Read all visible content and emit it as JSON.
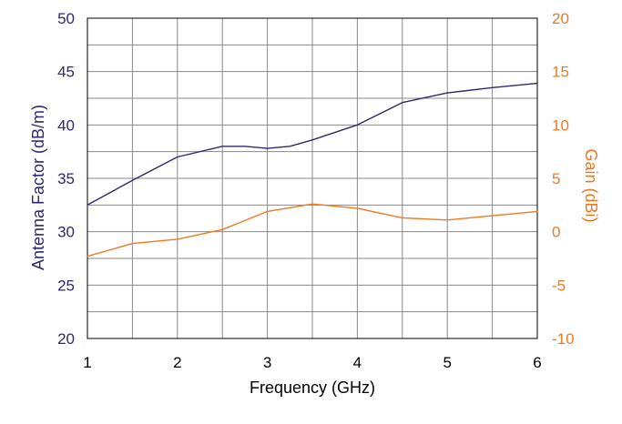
{
  "chart_data": {
    "type": "line",
    "xlabel": "Frequency (GHz)",
    "ylabel_left": "Antenna Factor (dB/m)",
    "ylabel_right": "Gain (dBi)",
    "xlim": [
      1,
      6
    ],
    "ylim_left": [
      20,
      50
    ],
    "ylim_right": [
      -10,
      20
    ],
    "x_ticks": [
      "1",
      "2",
      "3",
      "4",
      "5",
      "6"
    ],
    "y_left_ticks": [
      "20",
      "25",
      "30",
      "35",
      "40",
      "45",
      "50"
    ],
    "y_right_ticks": [
      "-10",
      "-5",
      "0",
      "5",
      "10",
      "15",
      "20"
    ],
    "grid": true,
    "series": [
      {
        "axis": "left",
        "color": "#2e2a6e",
        "x": [
          1,
          1.5,
          2,
          2.5,
          2.75,
          3,
          3.25,
          3.5,
          4,
          4.5,
          5,
          5.5,
          6
        ],
        "values": [
          32.5,
          34.8,
          37.0,
          38.0,
          38.0,
          37.8,
          38.0,
          38.6,
          40.0,
          42.1,
          43.0,
          43.5,
          43.9
        ]
      },
      {
        "axis": "right",
        "color": "#f07820",
        "x": [
          1,
          1.5,
          2,
          2.5,
          3,
          3.5,
          4,
          4.5,
          5,
          5.5,
          6
        ],
        "values": [
          -2.3,
          -1.1,
          -0.7,
          0.2,
          1.9,
          2.6,
          2.2,
          1.3,
          1.1,
          1.5,
          1.9
        ]
      }
    ]
  }
}
